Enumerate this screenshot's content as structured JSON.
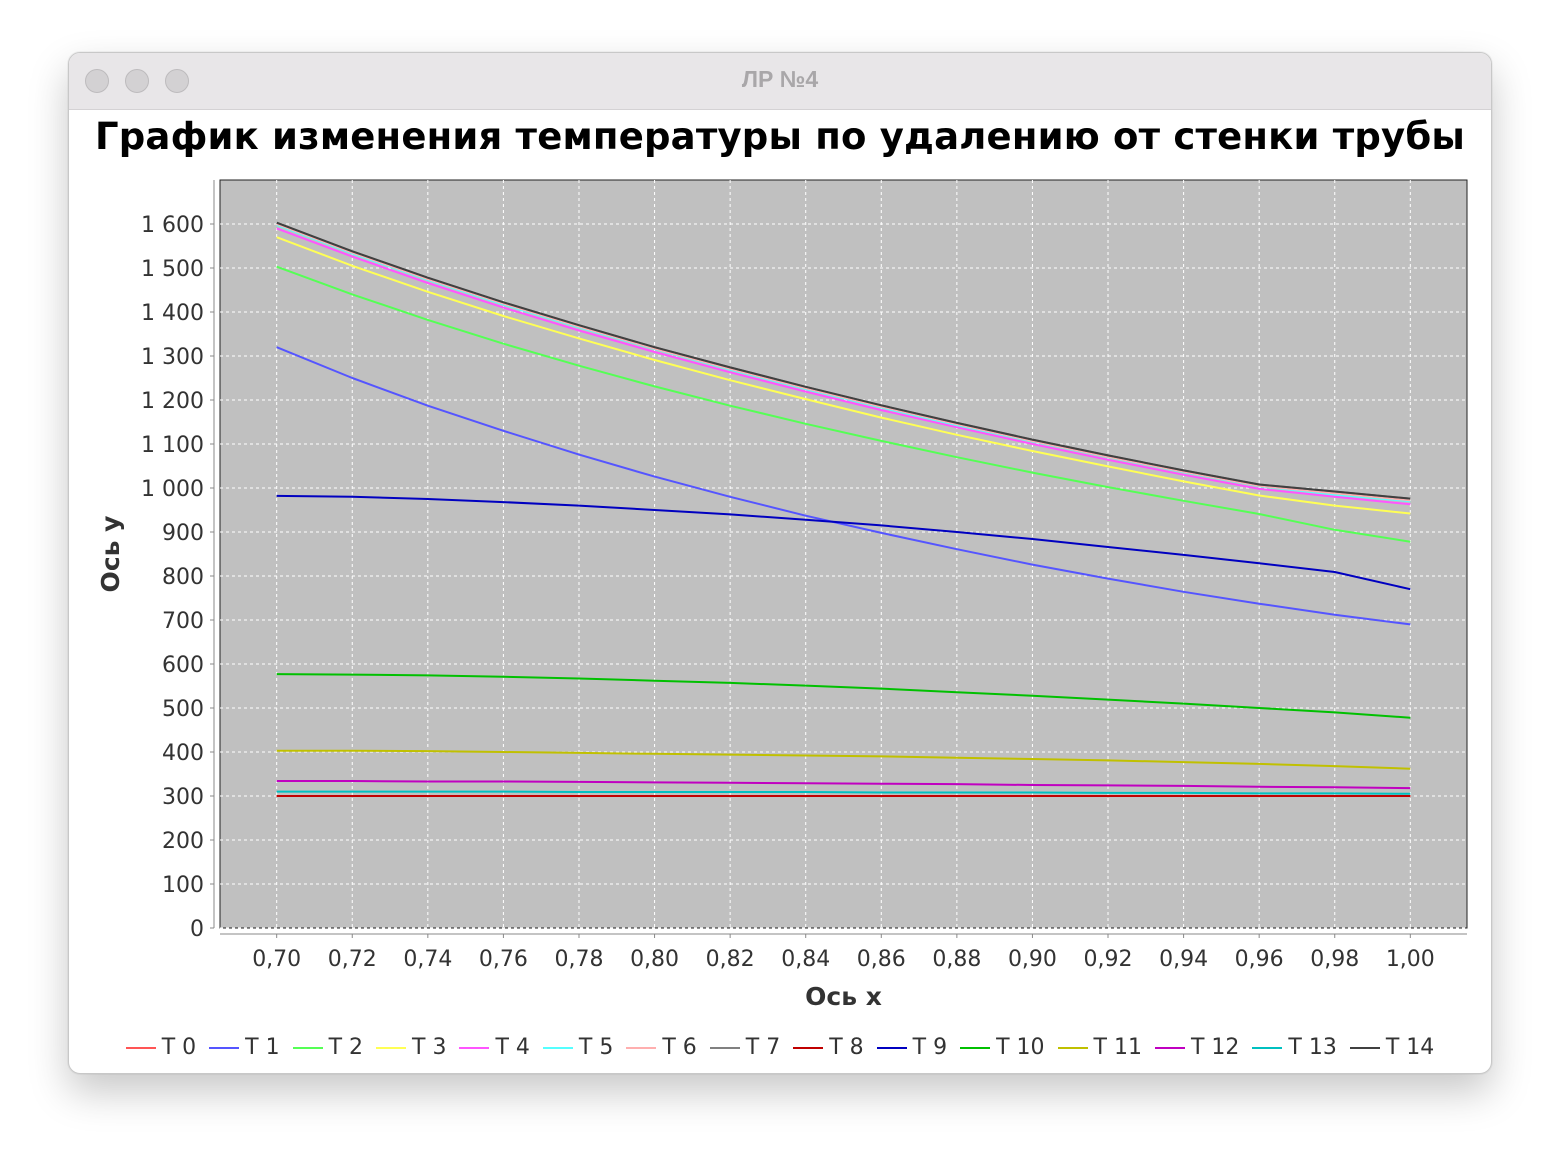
{
  "window": {
    "title": "ЛР №4"
  },
  "chart_data": {
    "type": "line",
    "title": "График изменения температуры по удалению от стенки трубы",
    "xlabel": "Ось x",
    "ylabel": "Ось y",
    "xlim": [
      0.685,
      1.015
    ],
    "ylim": [
      0,
      1700
    ],
    "xticks": [
      0.7,
      0.72,
      0.74,
      0.76,
      0.78,
      0.8,
      0.82,
      0.84,
      0.86,
      0.88,
      0.9,
      0.92,
      0.94,
      0.96,
      0.98,
      1.0
    ],
    "xtick_labels": [
      "0,70",
      "0,72",
      "0,74",
      "0,76",
      "0,78",
      "0,80",
      "0,82",
      "0,84",
      "0,86",
      "0,88",
      "0,90",
      "0,92",
      "0,94",
      "0,96",
      "0,98",
      "1,00"
    ],
    "yticks": [
      0,
      100,
      200,
      300,
      400,
      500,
      600,
      700,
      800,
      900,
      1000,
      1100,
      1200,
      1300,
      1400,
      1500,
      1600
    ],
    "ytick_labels": [
      "0",
      "100",
      "200",
      "300",
      "400",
      "500",
      "600",
      "700",
      "800",
      "900",
      "1 000",
      "1 100",
      "1 200",
      "1 300",
      "1 400",
      "1 500",
      "1 600"
    ],
    "grid": true,
    "legend": "bottom",
    "plot_background": "#c0c0c0",
    "x": [
      0.7,
      0.72,
      0.74,
      0.76,
      0.78,
      0.8,
      0.82,
      0.84,
      0.86,
      0.88,
      0.9,
      0.92,
      0.94,
      0.96,
      0.98,
      1.0
    ],
    "series": [
      {
        "name": "T 0",
        "color": "#ff5555",
        "values": [
          300,
          300,
          300,
          300,
          300,
          300,
          300,
          300,
          300,
          300,
          300,
          300,
          300,
          300,
          300,
          300
        ]
      },
      {
        "name": "T 1",
        "color": "#5555ff",
        "values": [
          1320,
          1250,
          1187,
          1130,
          1076,
          1026,
          980,
          937,
          898,
          861,
          826,
          794,
          764,
          737,
          712,
          690
        ]
      },
      {
        "name": "T 2",
        "color": "#55ff55",
        "values": [
          1503,
          1440,
          1382,
          1328,
          1278,
          1231,
          1187,
          1146,
          1107,
          1070,
          1035,
          1002,
          971,
          941,
          905,
          878
        ]
      },
      {
        "name": "T 3",
        "color": "#ffff55",
        "values": [
          1570,
          1505,
          1446,
          1391,
          1340,
          1291,
          1245,
          1202,
          1160,
          1121,
          1084,
          1049,
          1015,
          983,
          960,
          942
        ]
      },
      {
        "name": "T 4",
        "color": "#ff55ff",
        "values": [
          1590,
          1526,
          1466,
          1410,
          1358,
          1309,
          1263,
          1219,
          1177,
          1138,
          1100,
          1064,
          1030,
          998,
          980,
          963
        ]
      },
      {
        "name": "T 5",
        "color": "#55ffff",
        "values": [
          1598,
          1533,
          1473,
          1417,
          1365,
          1316,
          1269,
          1225,
          1183,
          1143,
          1106,
          1070,
          1036,
          1004,
          985,
          970
        ]
      },
      {
        "name": "T 6",
        "color": "#ffafaf",
        "values": [
          1600,
          1535,
          1475,
          1419,
          1367,
          1317,
          1271,
          1227,
          1185,
          1145,
          1107,
          1071,
          1037,
          1005,
          988,
          972
        ]
      },
      {
        "name": "T 7",
        "color": "#808080",
        "values": [
          1603,
          1538,
          1478,
          1422,
          1370,
          1320,
          1274,
          1230,
          1188,
          1148,
          1110,
          1074,
          1040,
          1008,
          992,
          976
        ]
      },
      {
        "name": "T 8",
        "color": "#c00000",
        "values": [
          300,
          300,
          300,
          300,
          300,
          300,
          300,
          300,
          300,
          300,
          300,
          300,
          300,
          300,
          300,
          300
        ]
      },
      {
        "name": "T 9",
        "color": "#0000c0",
        "values": [
          982,
          980,
          975,
          968,
          960,
          950,
          940,
          928,
          915,
          900,
          884,
          866,
          848,
          829,
          809,
          770
        ]
      },
      {
        "name": "T 10",
        "color": "#00c000",
        "values": [
          577,
          576,
          574,
          571,
          567,
          562,
          557,
          551,
          544,
          536,
          528,
          519,
          510,
          500,
          490,
          478
        ]
      },
      {
        "name": "T 11",
        "color": "#c0c000",
        "values": [
          403,
          403,
          402,
          400,
          398,
          396,
          394,
          392,
          390,
          387,
          384,
          381,
          377,
          373,
          368,
          362
        ]
      },
      {
        "name": "T 12",
        "color": "#c000c0",
        "values": [
          334,
          334,
          333,
          333,
          332,
          331,
          330,
          329,
          328,
          327,
          325,
          324,
          323,
          321,
          320,
          318
        ]
      },
      {
        "name": "T 13",
        "color": "#00c0c0",
        "values": [
          310,
          310,
          310,
          310,
          309,
          309,
          309,
          309,
          308,
          308,
          308,
          307,
          307,
          306,
          306,
          305
        ]
      },
      {
        "name": "T 14",
        "color": "#404040",
        "values": [
          1603,
          1538,
          1478,
          1422,
          1370,
          1320,
          1274,
          1230,
          1188,
          1148,
          1110,
          1074,
          1040,
          1008,
          992,
          976
        ]
      }
    ]
  }
}
